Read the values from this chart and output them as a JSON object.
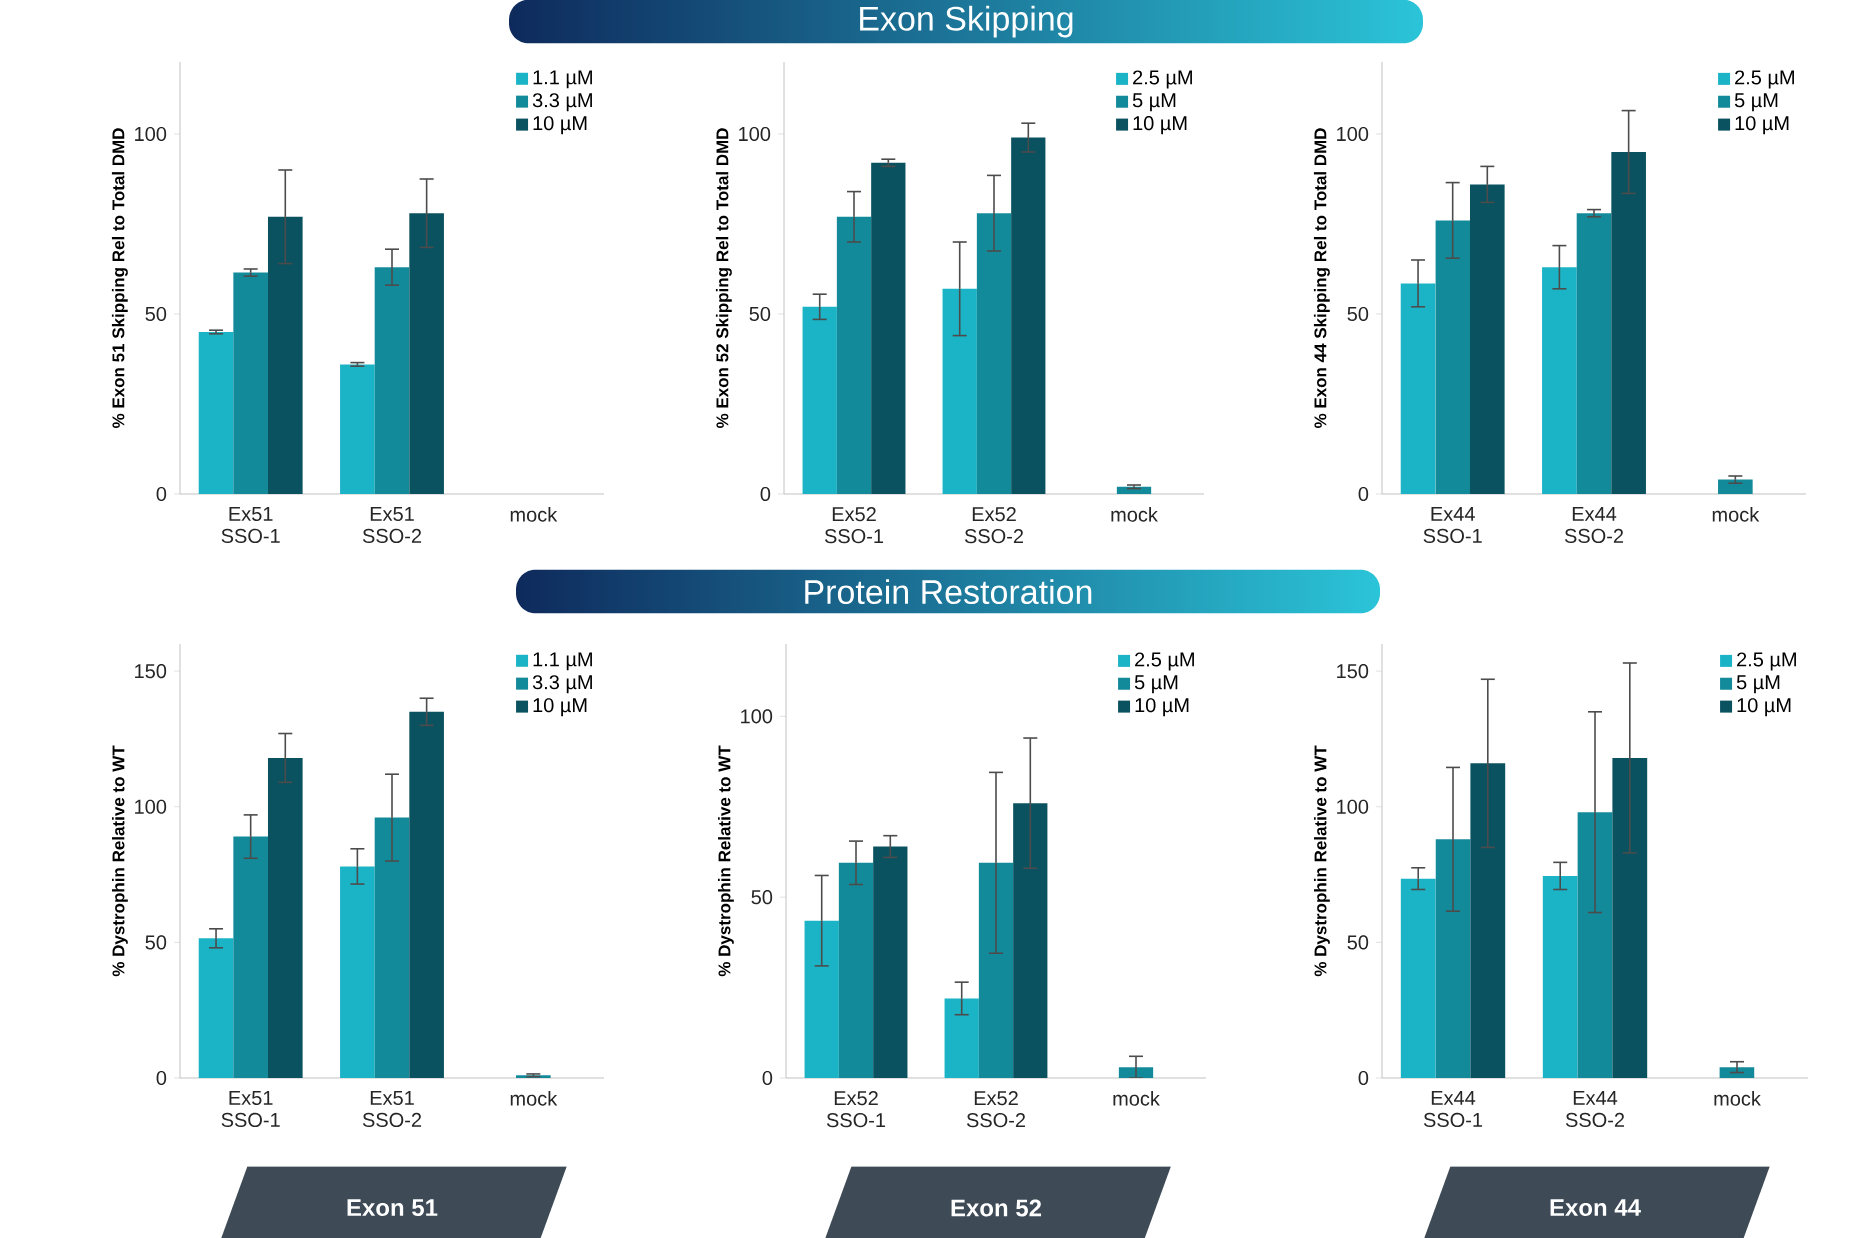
{
  "chart_data": [
    {
      "type": "bar",
      "categories": [
        "Ex51 SSO-1",
        "Ex51 SSO-2",
        "mock"
      ],
      "ylabel": "% Exon 51 Skipping Rel to Total DMD",
      "ylim": [
        0,
        120
      ],
      "yticks": [
        0,
        50,
        100
      ],
      "legend": "top right",
      "series": [
        {
          "name": "1.1 µM",
          "color": "#1bb3c6",
          "values": [
            45,
            36,
            null
          ],
          "errors": [
            0.5,
            0.5,
            null
          ]
        },
        {
          "name": "3.3 µM",
          "color": "#138a99",
          "values": [
            61.5,
            63,
            null
          ],
          "errors": [
            1,
            5,
            null
          ]
        },
        {
          "name": "10 µM",
          "color": "#0b5260",
          "values": [
            77,
            78,
            null
          ],
          "errors": [
            13,
            9.5,
            null
          ]
        }
      ]
    },
    {
      "type": "bar",
      "title": "Exon Skipping",
      "categories": [
        "Ex52 SSO-1",
        "Ex52 SSO-2",
        "mock"
      ],
      "ylabel": "% Exon 52 Skipping Rel to Total DMD",
      "ylim": [
        0,
        120
      ],
      "yticks": [
        0,
        50,
        100
      ],
      "legend": "top right",
      "series": [
        {
          "name": "2.5 µM",
          "color": "#1bb3c6",
          "values": [
            52,
            57,
            null
          ],
          "errors": [
            3.5,
            13,
            null
          ]
        },
        {
          "name": "5 µM",
          "color": "#138a99",
          "values": [
            77,
            78,
            2
          ],
          "errors": [
            7,
            10.5,
            0.5
          ]
        },
        {
          "name": "10 µM",
          "color": "#0b5260",
          "values": [
            92,
            99,
            null
          ],
          "errors": [
            1,
            4,
            null
          ]
        }
      ]
    },
    {
      "type": "bar",
      "categories": [
        "Ex44 SSO-1",
        "Ex44 SSO-2",
        "mock"
      ],
      "ylabel": "% Exon 44 Skipping Rel to Total DMD",
      "ylim": [
        0,
        120
      ],
      "yticks": [
        0,
        50,
        100
      ],
      "legend": "top right",
      "series": [
        {
          "name": "2.5 µM",
          "color": "#1bb3c6",
          "values": [
            58.5,
            63,
            null
          ],
          "errors": [
            6.5,
            6,
            null
          ]
        },
        {
          "name": "5 µM",
          "color": "#138a99",
          "values": [
            76,
            78,
            4
          ],
          "errors": [
            10.5,
            1,
            1
          ]
        },
        {
          "name": "10 µM",
          "color": "#0b5260",
          "values": [
            86,
            95,
            null
          ],
          "errors": [
            5,
            11.5,
            null
          ]
        }
      ]
    },
    {
      "type": "bar",
      "categories": [
        "Ex51 SSO-1",
        "Ex51 SSO-2",
        "mock"
      ],
      "ylabel": "% Dystrophin Relative to WT",
      "xlabel": "Exon 51",
      "ylim": [
        0,
        160
      ],
      "yticks": [
        0,
        50,
        100,
        150
      ],
      "legend": "top right",
      "series": [
        {
          "name": "1.1 µM",
          "color": "#1bb3c6",
          "values": [
            51.5,
            78,
            null
          ],
          "errors": [
            3.5,
            6.5,
            null
          ]
        },
        {
          "name": "3.3 µM",
          "color": "#138a99",
          "values": [
            89,
            96,
            1
          ],
          "errors": [
            8,
            16,
            0.5
          ]
        },
        {
          "name": "10 µM",
          "color": "#0b5260",
          "values": [
            118,
            135,
            null
          ],
          "errors": [
            9,
            5,
            null
          ]
        }
      ]
    },
    {
      "type": "bar",
      "title": "Protein Restoration",
      "categories": [
        "Ex52 SSO-1",
        "Ex52 SSO-2",
        "mock"
      ],
      "ylabel": "% Dystrophin Relative to WT",
      "xlabel": "Exon 52",
      "ylim": [
        0,
        120
      ],
      "yticks": [
        0,
        50,
        100
      ],
      "legend": "top right",
      "series": [
        {
          "name": "2.5 µM",
          "color": "#1bb3c6",
          "values": [
            43.5,
            22,
            null
          ],
          "errors": [
            12.5,
            4.5,
            null
          ]
        },
        {
          "name": "5 µM",
          "color": "#138a99",
          "values": [
            59.5,
            59.5,
            3
          ],
          "errors": [
            6,
            25,
            3
          ]
        },
        {
          "name": "10 µM",
          "color": "#0b5260",
          "values": [
            64,
            76,
            null
          ],
          "errors": [
            3,
            18,
            null
          ]
        }
      ]
    },
    {
      "type": "bar",
      "categories": [
        "Ex44 SSO-1",
        "Ex44 SSO-2",
        "mock"
      ],
      "ylabel": "% Dystrophin Relative to WT",
      "xlabel": "Exon 44",
      "ylim": [
        0,
        160
      ],
      "yticks": [
        0,
        50,
        100,
        150
      ],
      "legend": "top right",
      "series": [
        {
          "name": "2.5 µM",
          "color": "#1bb3c6",
          "values": [
            73.5,
            74.5,
            null
          ],
          "errors": [
            4,
            5,
            null
          ]
        },
        {
          "name": "5 µM",
          "color": "#138a99",
          "values": [
            88,
            98,
            4
          ],
          "errors": [
            26.5,
            37,
            2
          ]
        },
        {
          "name": "10 µM",
          "color": "#0b5260",
          "values": [
            116,
            118,
            null
          ],
          "errors": [
            31,
            35,
            null
          ]
        }
      ]
    }
  ]
}
